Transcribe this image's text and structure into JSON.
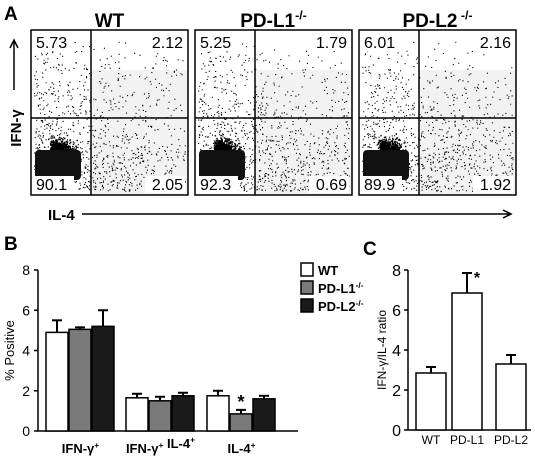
{
  "panel_a": {
    "letter": "A",
    "x_axis_label": "IL-4",
    "y_axis_label": "IFN-γ",
    "plots": [
      {
        "title_main": "WT",
        "title_sup": "",
        "ul": "5.73",
        "ur": "2.12",
        "ll": "90.1",
        "lr": "2.05"
      },
      {
        "title_main": "PD-L1",
        "title_sup": "-/-",
        "ul": "5.25",
        "ur": "1.79",
        "ll": "92.3",
        "lr": "0.69"
      },
      {
        "title_main": "PD-L2",
        "title_sup": " -/-",
        "ul": "6.01",
        "ur": "2.16",
        "ll": "89.9",
        "lr": "1.92"
      }
    ]
  },
  "chart_data": [
    {
      "panel": "B",
      "type": "bar",
      "ylabel": "% Positive",
      "ylim": [
        0,
        8
      ],
      "yticks": [
        "0",
        "2",
        "4",
        "6",
        "8"
      ],
      "categories": [
        {
          "main": "IFN-γ",
          "sup": "+",
          "main2": "",
          "sup2": ""
        },
        {
          "main": "IFN-γ",
          "sup": "+",
          "main2": " IL-4",
          "sup2": "+"
        },
        {
          "main": "IL-4",
          "sup": "+",
          "main2": "",
          "sup2": ""
        }
      ],
      "series": [
        {
          "name": "WT",
          "sup": "",
          "color": "#ffffff",
          "values": [
            4.9,
            1.65,
            1.75
          ],
          "errors": [
            0.6,
            0.2,
            0.25
          ]
        },
        {
          "name": "PD-L1",
          "sup": "-/-",
          "color": "#7a7a7a",
          "values": [
            5.05,
            1.5,
            0.85
          ],
          "errors": [
            0.1,
            0.2,
            0.2
          ]
        },
        {
          "name": "PD-L2",
          "sup": "-/-",
          "color": "#1a1a1a",
          "values": [
            5.2,
            1.75,
            1.6
          ],
          "errors": [
            0.8,
            0.15,
            0.15
          ]
        }
      ],
      "annotations": [
        {
          "text": "*",
          "category": 2,
          "series": 1
        }
      ],
      "legend_position": "top-right"
    },
    {
      "panel": "C",
      "type": "bar",
      "ylabel": "IFN-γ/IL-4 ratio",
      "ylim": [
        0,
        8
      ],
      "yticks": [
        "0",
        "2",
        "4",
        "6",
        "8"
      ],
      "categories": [
        "WT",
        "PD-L1",
        "PD-L2"
      ],
      "values": [
        2.85,
        6.85,
        3.3
      ],
      "errors": [
        0.3,
        1.0,
        0.45
      ],
      "bar_color": "#ffffff",
      "annotations": [
        {
          "text": "*",
          "category": 1
        }
      ]
    }
  ],
  "panel_b_letter": "B",
  "panel_c_letter": "C"
}
